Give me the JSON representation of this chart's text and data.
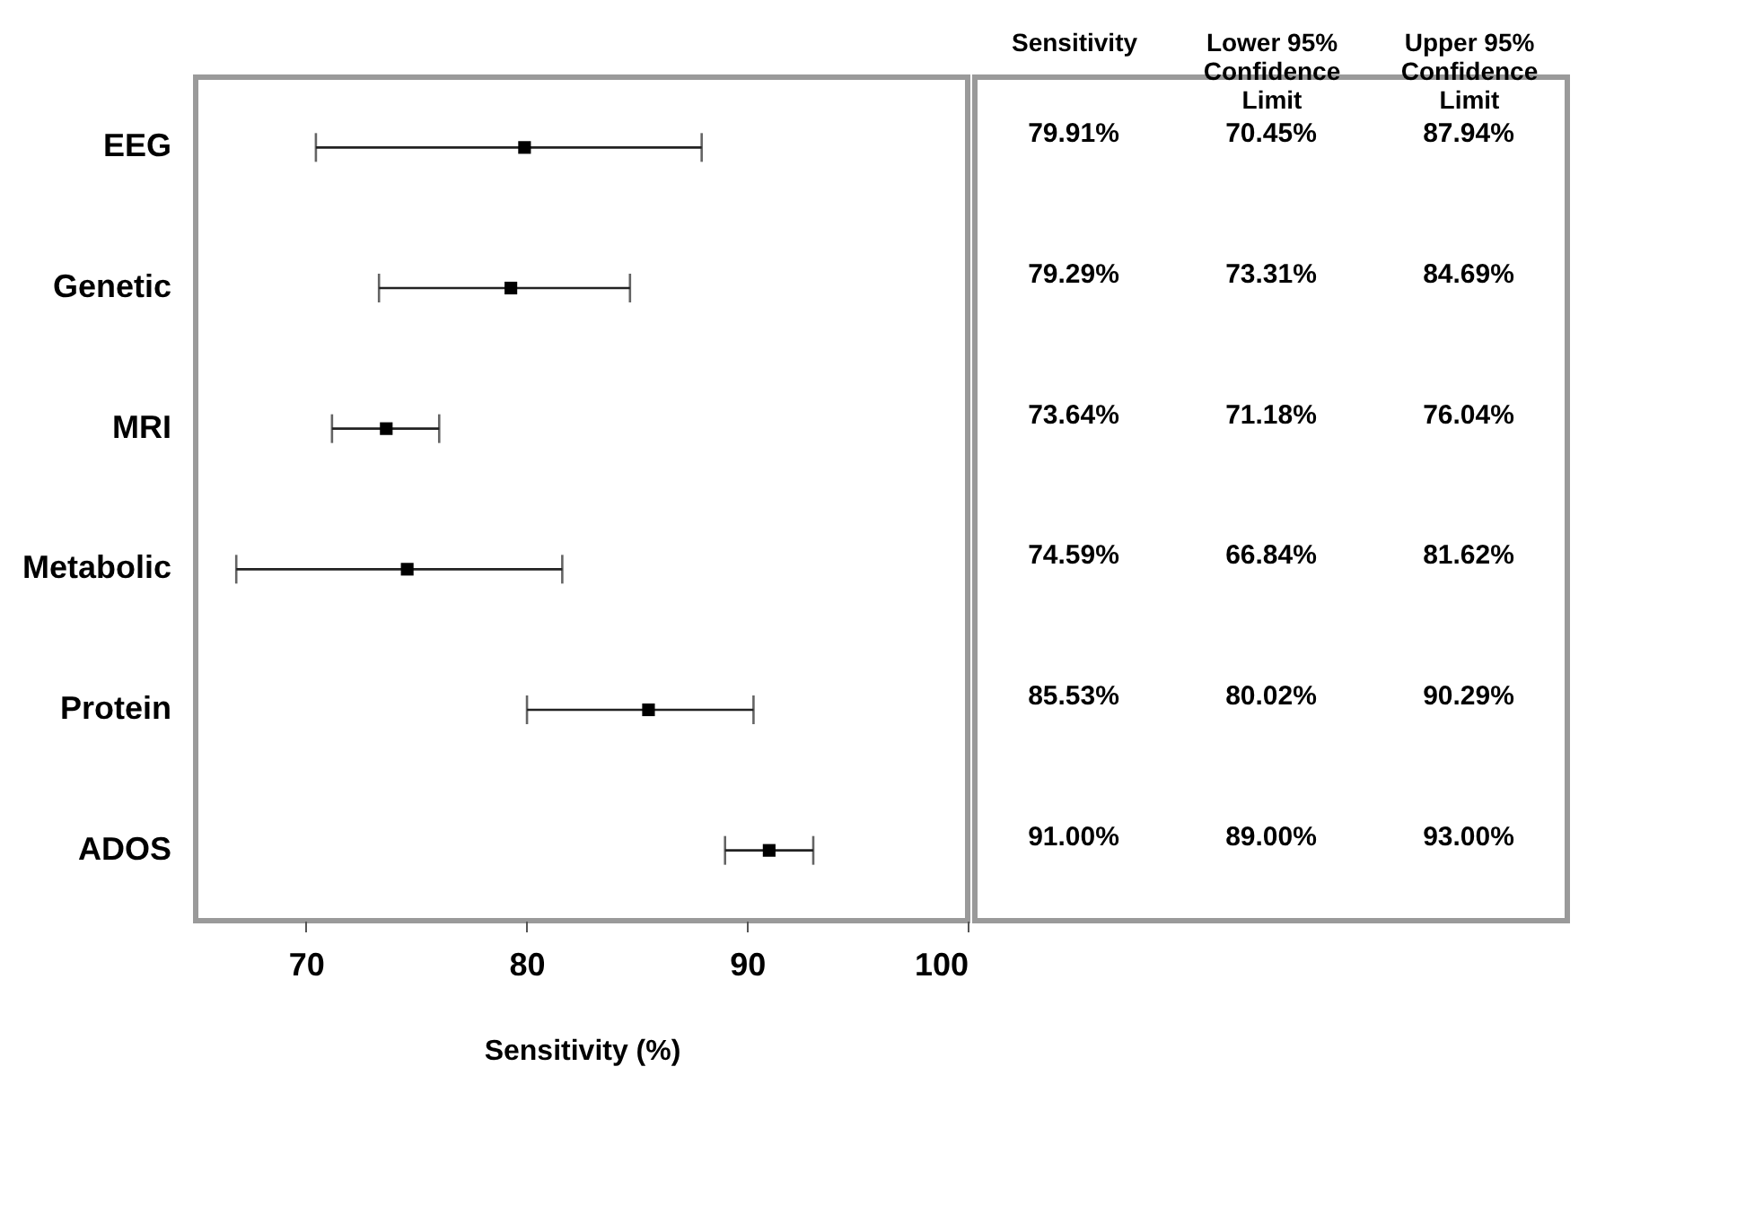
{
  "chart_data": [
    {
      "type": "scatter",
      "xlabel": "Sensitivity (%)",
      "categories": [
        "EEG",
        "Genetic",
        "MRI",
        "Metabolic",
        "Protein",
        "ADOS"
      ],
      "orientation": "horizontal",
      "values": [
        79.91,
        79.29,
        73.64,
        74.59,
        85.53,
        91.0
      ],
      "color": "#000000",
      "marker": "square",
      "errors": [
        [
          70.45,
          87.94
        ],
        [
          73.31,
          84.69
        ],
        [
          71.18,
          76.04
        ],
        [
          66.84,
          81.62
        ],
        [
          80.02,
          90.29
        ],
        [
          89.0,
          93.0
        ]
      ],
      "xlim": [
        65,
        100
      ],
      "xticks": [
        70,
        80,
        90,
        100
      ],
      "grid": false
    },
    {
      "type": "other",
      "categories": [
        "Sensitivity",
        "Lower 95% Confidence Limit",
        "Upper 95% Confidence Limit"
      ],
      "cell_labels": [
        [
          "79.91%",
          "70.45%",
          "87.94%"
        ],
        [
          "79.29%",
          "73.31%",
          "84.69%"
        ],
        [
          "73.64%",
          "71.18%",
          "76.04%"
        ],
        [
          "74.59%",
          "66.84%",
          "81.62%"
        ],
        [
          "85.53%",
          "80.02%",
          "90.29%"
        ],
        [
          "91.00%",
          "89.00%",
          "93.00%"
        ]
      ]
    }
  ]
}
